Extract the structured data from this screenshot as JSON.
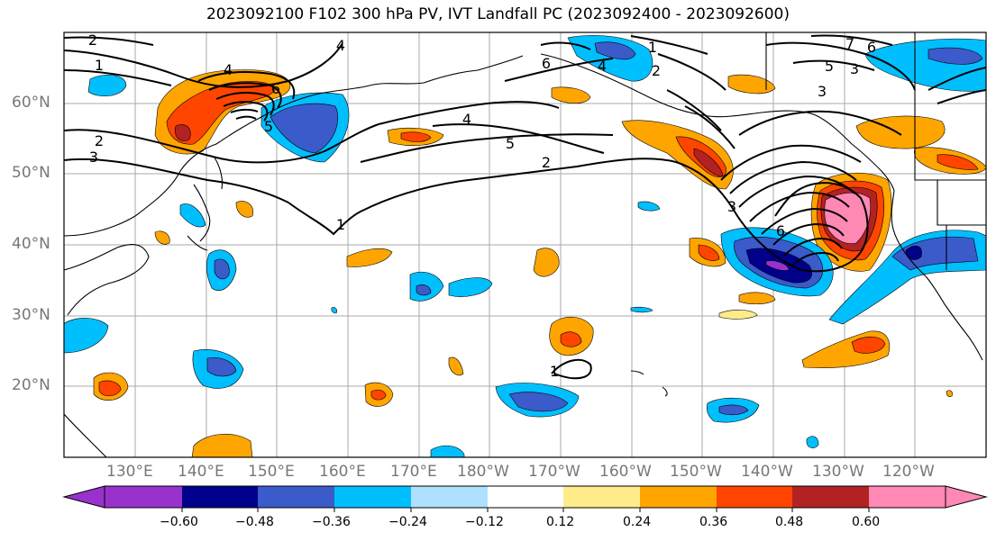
{
  "title": "2023092100 F102 300 hPa PV, IVT Landfall PC (2023092400 - 2023092600)",
  "map": {
    "lat_range": [
      10,
      70
    ],
    "lon_range": [
      120,
      250
    ],
    "lat_labels": [
      "60°N",
      "50°N",
      "40°N",
      "30°N",
      "20°N"
    ],
    "lon_labels": [
      "130°E",
      "140°E",
      "150°E",
      "160°E",
      "170°E",
      "180°W",
      "170°W",
      "160°W",
      "150°W",
      "140°W",
      "130°W",
      "120°W"
    ],
    "contour_labels": [
      "2",
      "1",
      "2",
      "3",
      "4",
      "6",
      "5",
      "4",
      "5",
      "2",
      "1",
      "3",
      "6",
      "3",
      "4",
      "1",
      "6",
      "4",
      "5",
      "3",
      "7",
      "6",
      "2",
      "1"
    ]
  },
  "colorbar": {
    "colors": [
      "#9932cc",
      "#00008b",
      "#3a5bc9",
      "#00bfff",
      "#b0e0ff",
      "#ffffff",
      "#ffeb8a",
      "#ffa500",
      "#ff4500",
      "#b22222",
      "#ff88b4"
    ],
    "tick_labels": [
      "−0.60",
      "−0.48",
      "−0.36",
      "−0.24",
      "−0.12",
      "0.12",
      "0.24",
      "0.36",
      "0.48",
      "0.60"
    ]
  }
}
